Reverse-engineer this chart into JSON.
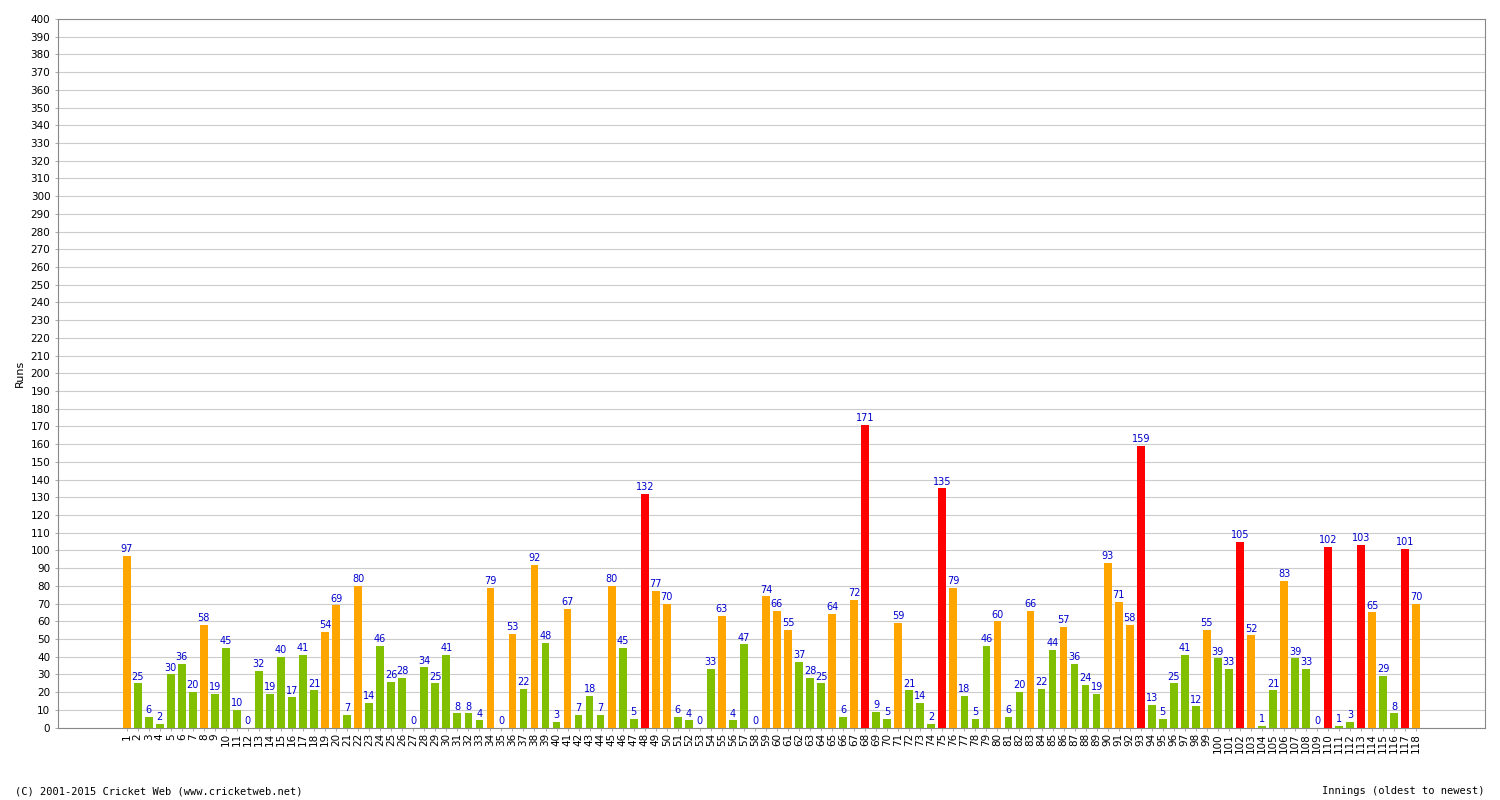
{
  "ylabel": "Runs",
  "footer": "(C) 2001-2015 Cricket Web (www.cricketweb.net)",
  "innings_label": "Innings (oldest to newest)",
  "ylim": [
    0,
    400
  ],
  "yticks": [
    0,
    10,
    20,
    30,
    40,
    50,
    60,
    70,
    80,
    90,
    100,
    110,
    120,
    130,
    140,
    150,
    160,
    170,
    180,
    190,
    200,
    210,
    220,
    230,
    240,
    250,
    260,
    270,
    280,
    290,
    300,
    310,
    320,
    330,
    340,
    350,
    360,
    370,
    380,
    390,
    400
  ],
  "innings": [
    {
      "num": 1,
      "score": 97,
      "color": "orange"
    },
    {
      "num": 2,
      "score": 25,
      "color": "green"
    },
    {
      "num": 3,
      "score": 6,
      "color": "green"
    },
    {
      "num": 4,
      "score": 2,
      "color": "green"
    },
    {
      "num": 5,
      "score": 30,
      "color": "green"
    },
    {
      "num": 6,
      "score": 36,
      "color": "green"
    },
    {
      "num": 7,
      "score": 20,
      "color": "green"
    },
    {
      "num": 8,
      "score": 58,
      "color": "orange"
    },
    {
      "num": 9,
      "score": 19,
      "color": "green"
    },
    {
      "num": 10,
      "score": 45,
      "color": "green"
    },
    {
      "num": 11,
      "score": 10,
      "color": "green"
    },
    {
      "num": 12,
      "score": 0,
      "color": "green"
    },
    {
      "num": 13,
      "score": 32,
      "color": "green"
    },
    {
      "num": 14,
      "score": 19,
      "color": "green"
    },
    {
      "num": 15,
      "score": 40,
      "color": "green"
    },
    {
      "num": 16,
      "score": 17,
      "color": "green"
    },
    {
      "num": 17,
      "score": 41,
      "color": "green"
    },
    {
      "num": 18,
      "score": 21,
      "color": "green"
    },
    {
      "num": 19,
      "score": 54,
      "color": "orange"
    },
    {
      "num": 20,
      "score": 69,
      "color": "orange"
    },
    {
      "num": 21,
      "score": 7,
      "color": "green"
    },
    {
      "num": 22,
      "score": 80,
      "color": "orange"
    },
    {
      "num": 23,
      "score": 14,
      "color": "green"
    },
    {
      "num": 24,
      "score": 46,
      "color": "green"
    },
    {
      "num": 25,
      "score": 26,
      "color": "green"
    },
    {
      "num": 26,
      "score": 28,
      "color": "green"
    },
    {
      "num": 27,
      "score": 0,
      "color": "green"
    },
    {
      "num": 28,
      "score": 34,
      "color": "green"
    },
    {
      "num": 29,
      "score": 25,
      "color": "green"
    },
    {
      "num": 30,
      "score": 41,
      "color": "green"
    },
    {
      "num": 31,
      "score": 8,
      "color": "green"
    },
    {
      "num": 32,
      "score": 8,
      "color": "green"
    },
    {
      "num": 33,
      "score": 4,
      "color": "green"
    },
    {
      "num": 34,
      "score": 79,
      "color": "orange"
    },
    {
      "num": 35,
      "score": 0,
      "color": "green"
    },
    {
      "num": 36,
      "score": 53,
      "color": "orange"
    },
    {
      "num": 37,
      "score": 22,
      "color": "green"
    },
    {
      "num": 38,
      "score": 92,
      "color": "orange"
    },
    {
      "num": 39,
      "score": 48,
      "color": "green"
    },
    {
      "num": 40,
      "score": 3,
      "color": "green"
    },
    {
      "num": 41,
      "score": 67,
      "color": "orange"
    },
    {
      "num": 42,
      "score": 7,
      "color": "green"
    },
    {
      "num": 43,
      "score": 18,
      "color": "green"
    },
    {
      "num": 44,
      "score": 7,
      "color": "green"
    },
    {
      "num": 45,
      "score": 80,
      "color": "orange"
    },
    {
      "num": 46,
      "score": 45,
      "color": "green"
    },
    {
      "num": 47,
      "score": 5,
      "color": "green"
    },
    {
      "num": 48,
      "score": 132,
      "color": "red"
    },
    {
      "num": 49,
      "score": 77,
      "color": "orange"
    },
    {
      "num": 50,
      "score": 70,
      "color": "orange"
    },
    {
      "num": 51,
      "score": 6,
      "color": "green"
    },
    {
      "num": 52,
      "score": 4,
      "color": "green"
    },
    {
      "num": 53,
      "score": 0,
      "color": "green"
    },
    {
      "num": 54,
      "score": 33,
      "color": "green"
    },
    {
      "num": 55,
      "score": 63,
      "color": "orange"
    },
    {
      "num": 56,
      "score": 4,
      "color": "green"
    },
    {
      "num": 57,
      "score": 47,
      "color": "green"
    },
    {
      "num": 58,
      "score": 0,
      "color": "green"
    },
    {
      "num": 59,
      "score": 74,
      "color": "orange"
    },
    {
      "num": 60,
      "score": 66,
      "color": "orange"
    },
    {
      "num": 61,
      "score": 55,
      "color": "orange"
    },
    {
      "num": 62,
      "score": 37,
      "color": "green"
    },
    {
      "num": 63,
      "score": 28,
      "color": "green"
    },
    {
      "num": 64,
      "score": 25,
      "color": "green"
    },
    {
      "num": 65,
      "score": 64,
      "color": "orange"
    },
    {
      "num": 66,
      "score": 6,
      "color": "green"
    },
    {
      "num": 67,
      "score": 72,
      "color": "orange"
    },
    {
      "num": 68,
      "score": 171,
      "color": "red"
    },
    {
      "num": 69,
      "score": 9,
      "color": "green"
    },
    {
      "num": 70,
      "score": 5,
      "color": "green"
    },
    {
      "num": 71,
      "score": 59,
      "color": "orange"
    },
    {
      "num": 72,
      "score": 21,
      "color": "green"
    },
    {
      "num": 73,
      "score": 14,
      "color": "green"
    },
    {
      "num": 74,
      "score": 2,
      "color": "green"
    },
    {
      "num": 75,
      "score": 135,
      "color": "red"
    },
    {
      "num": 76,
      "score": 79,
      "color": "orange"
    },
    {
      "num": 77,
      "score": 18,
      "color": "green"
    },
    {
      "num": 78,
      "score": 5,
      "color": "green"
    },
    {
      "num": 79,
      "score": 46,
      "color": "green"
    },
    {
      "num": 80,
      "score": 60,
      "color": "orange"
    },
    {
      "num": 81,
      "score": 6,
      "color": "green"
    },
    {
      "num": 82,
      "score": 20,
      "color": "green"
    },
    {
      "num": 83,
      "score": 66,
      "color": "orange"
    },
    {
      "num": 84,
      "score": 22,
      "color": "green"
    },
    {
      "num": 85,
      "score": 44,
      "color": "green"
    },
    {
      "num": 86,
      "score": 57,
      "color": "orange"
    },
    {
      "num": 87,
      "score": 36,
      "color": "green"
    },
    {
      "num": 88,
      "score": 24,
      "color": "green"
    },
    {
      "num": 89,
      "score": 19,
      "color": "green"
    },
    {
      "num": 90,
      "score": 93,
      "color": "orange"
    },
    {
      "num": 91,
      "score": 71,
      "color": "orange"
    },
    {
      "num": 92,
      "score": 58,
      "color": "orange"
    },
    {
      "num": 93,
      "score": 159,
      "color": "red"
    },
    {
      "num": 94,
      "score": 13,
      "color": "green"
    },
    {
      "num": 95,
      "score": 5,
      "color": "green"
    },
    {
      "num": 96,
      "score": 25,
      "color": "green"
    },
    {
      "num": 97,
      "score": 41,
      "color": "green"
    },
    {
      "num": 98,
      "score": 12,
      "color": "green"
    },
    {
      "num": 99,
      "score": 55,
      "color": "orange"
    },
    {
      "num": 100,
      "score": 39,
      "color": "green"
    },
    {
      "num": 101,
      "score": 33,
      "color": "green"
    },
    {
      "num": 102,
      "score": 105,
      "color": "red"
    },
    {
      "num": 103,
      "score": 52,
      "color": "orange"
    },
    {
      "num": 104,
      "score": 1,
      "color": "green"
    },
    {
      "num": 105,
      "score": 21,
      "color": "green"
    },
    {
      "num": 106,
      "score": 83,
      "color": "orange"
    },
    {
      "num": 107,
      "score": 39,
      "color": "green"
    },
    {
      "num": 108,
      "score": 33,
      "color": "green"
    },
    {
      "num": 109,
      "score": 0,
      "color": "green"
    },
    {
      "num": 110,
      "score": 102,
      "color": "red"
    },
    {
      "num": 111,
      "score": 1,
      "color": "green"
    },
    {
      "num": 112,
      "score": 3,
      "color": "green"
    },
    {
      "num": 113,
      "score": 103,
      "color": "red"
    },
    {
      "num": 114,
      "score": 65,
      "color": "orange"
    },
    {
      "num": 115,
      "score": 29,
      "color": "green"
    },
    {
      "num": 116,
      "score": 8,
      "color": "green"
    },
    {
      "num": 117,
      "score": 101,
      "color": "red"
    },
    {
      "num": 118,
      "score": 70,
      "color": "orange"
    }
  ],
  "color_orange": "#FFA500",
  "color_green": "#80C000",
  "color_red": "#FF0000",
  "color_label": "#0000CC",
  "bg_color": "#FFFFFF",
  "plot_bg_color": "#FFFFFF",
  "grid_color": "#CCCCCC",
  "bar_width": 0.7,
  "label_fontsize": 7,
  "axis_label_fontsize": 8,
  "tick_fontsize": 7.5,
  "footer_fontsize": 7.5
}
